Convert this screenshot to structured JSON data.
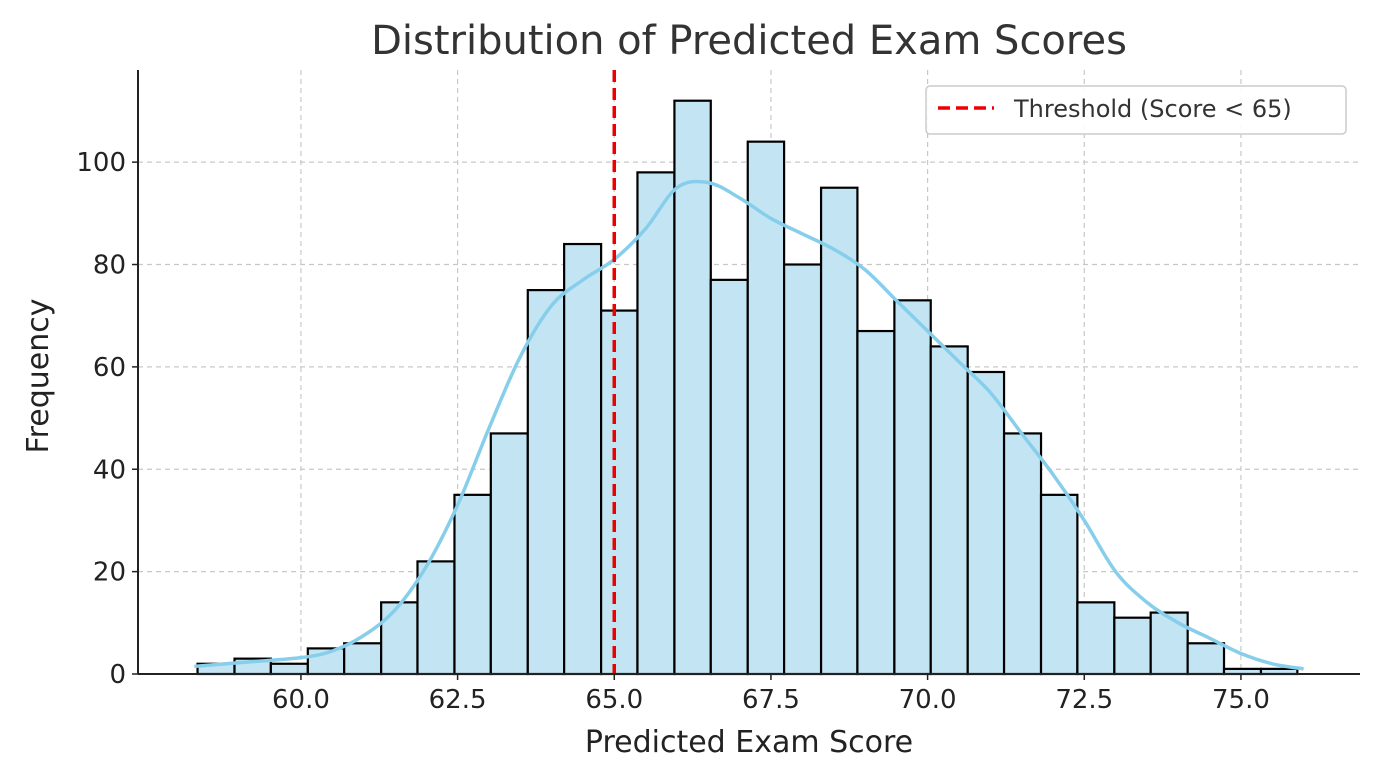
{
  "chart_data": {
    "type": "bar",
    "title": "Distribution of Predicted Exam Scores",
    "xlabel": "Predicted Exam Score",
    "ylabel": "Frequency",
    "xlim": [
      57.4,
      76.9
    ],
    "ylim": [
      0,
      118
    ],
    "x_ticks": [
      60.0,
      62.5,
      65.0,
      67.5,
      70.0,
      72.5,
      75.0
    ],
    "x_tick_labels": [
      "60.0",
      "62.5",
      "65.0",
      "67.5",
      "70.0",
      "72.5",
      "75.0"
    ],
    "y_ticks": [
      0,
      20,
      40,
      60,
      80,
      100
    ],
    "y_tick_labels": [
      "0",
      "20",
      "40",
      "60",
      "80",
      "100"
    ],
    "grid": true,
    "legend_position": "top-right",
    "bin_edges": [
      58.35,
      58.94,
      59.52,
      60.11,
      60.69,
      61.28,
      61.86,
      62.45,
      63.03,
      63.62,
      64.2,
      64.79,
      65.37,
      65.96,
      66.54,
      67.13,
      67.71,
      68.3,
      68.88,
      69.47,
      70.05,
      70.64,
      71.22,
      71.81,
      72.39,
      72.98,
      73.56,
      74.15,
      74.73,
      75.32,
      75.9
    ],
    "values": [
      2,
      3,
      2,
      5,
      6,
      14,
      22,
      35,
      47,
      75,
      84,
      71,
      98,
      112,
      77,
      104,
      80,
      95,
      67,
      73,
      64,
      59,
      47,
      35,
      14,
      11,
      12,
      6,
      1,
      1
    ],
    "kde_curve": {
      "x": [
        58.3,
        59.0,
        60.0,
        60.5,
        61.0,
        61.5,
        62.0,
        62.5,
        63.0,
        63.5,
        64.0,
        64.5,
        65.0,
        65.5,
        66.0,
        66.5,
        67.0,
        67.5,
        68.0,
        68.5,
        69.0,
        69.5,
        70.0,
        70.5,
        71.0,
        71.5,
        72.0,
        72.5,
        73.0,
        73.5,
        74.0,
        74.5,
        75.0,
        75.5,
        76.0
      ],
      "y": [
        1.5,
        2.2,
        3.2,
        4.5,
        7.5,
        12.5,
        21,
        33,
        48,
        62,
        72,
        77,
        81,
        87,
        95,
        96,
        93,
        89,
        86,
        83,
        79,
        73,
        67,
        61,
        55,
        47,
        39,
        30,
        20,
        14,
        10,
        7,
        4,
        2,
        1
      ]
    },
    "threshold": {
      "x": 65.0,
      "label": "Threshold (Score < 65)"
    },
    "colors": {
      "bar_fill": "#c3e5f3",
      "bar_edge": "#000000",
      "kde_line": "#87ceeb",
      "threshold_line": "#ee0000",
      "grid": "#c8c8c8",
      "title": "#333333"
    }
  }
}
